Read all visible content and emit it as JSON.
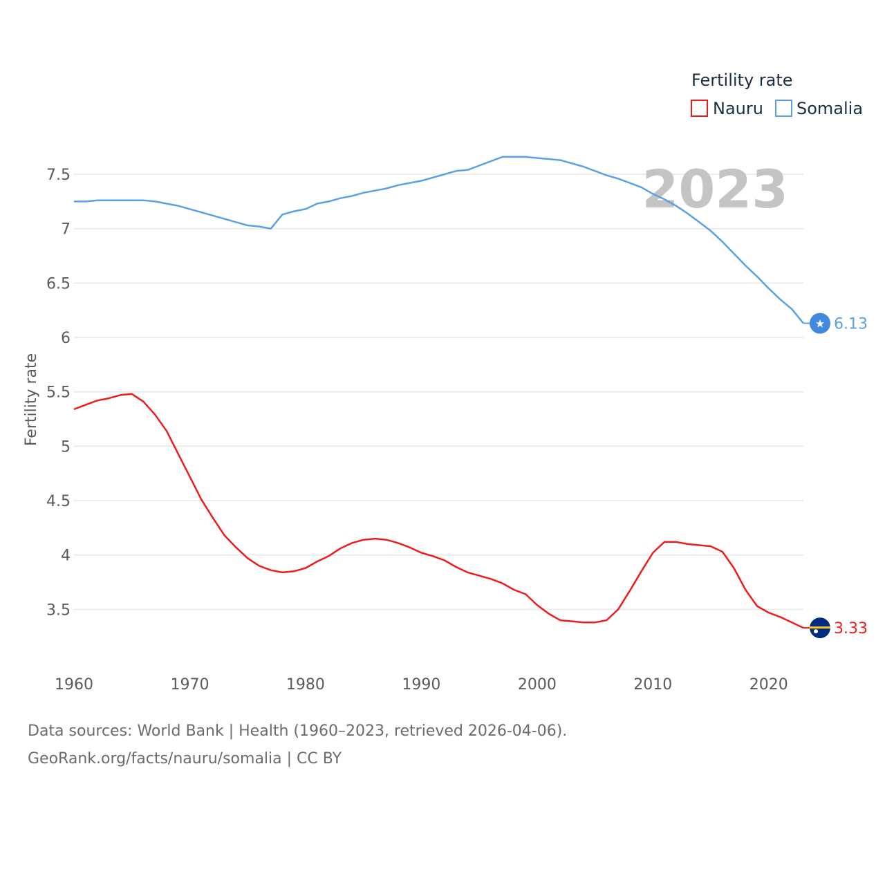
{
  "chart_data": {
    "type": "line",
    "legend_title": "Fertility rate",
    "ylabel": "Fertility rate",
    "year_label": "2023",
    "xlim": [
      1960,
      2023
    ],
    "ylim": [
      3.0,
      7.85
    ],
    "x_ticks": [
      "1960",
      "1970",
      "1980",
      "1990",
      "2000",
      "2010",
      "2020"
    ],
    "y_ticks": [
      "3.5",
      "4",
      "4.5",
      "5",
      "5.5",
      "6",
      "6.5",
      "7",
      "7.5"
    ],
    "legend_placement": "top-right",
    "series": [
      {
        "name": "Nauru",
        "color": "#ee1c1c",
        "end_label": "3.33",
        "marker_icon": "nauru-flag-icon",
        "x": [
          1960,
          1961,
          1962,
          1963,
          1964,
          1965,
          1966,
          1967,
          1968,
          1969,
          1970,
          1971,
          1972,
          1973,
          1974,
          1975,
          1976,
          1977,
          1978,
          1979,
          1980,
          1981,
          1982,
          1983,
          1984,
          1985,
          1986,
          1987,
          1988,
          1989,
          1990,
          1991,
          1992,
          1993,
          1994,
          1995,
          1996,
          1997,
          1998,
          1999,
          2000,
          2001,
          2002,
          2003,
          2004,
          2005,
          2006,
          2007,
          2008,
          2009,
          2010,
          2011,
          2012,
          2013,
          2014,
          2015,
          2016,
          2017,
          2018,
          2019,
          2020,
          2021,
          2022,
          2023
        ],
        "values": [
          5.34,
          5.38,
          5.42,
          5.44,
          5.47,
          5.48,
          5.41,
          5.29,
          5.14,
          4.93,
          4.72,
          4.51,
          4.34,
          4.18,
          4.07,
          3.97,
          3.9,
          3.86,
          3.84,
          3.85,
          3.88,
          3.94,
          3.99,
          4.06,
          4.11,
          4.14,
          4.15,
          4.14,
          4.11,
          4.07,
          4.02,
          3.99,
          3.95,
          3.89,
          3.84,
          3.81,
          3.78,
          3.74,
          3.68,
          3.64,
          3.54,
          3.46,
          3.4,
          3.39,
          3.38,
          3.38,
          3.4,
          3.5,
          3.67,
          3.85,
          4.02,
          4.12,
          4.12,
          4.1,
          4.09,
          4.08,
          4.03,
          3.88,
          3.68,
          3.53,
          3.47,
          3.43,
          3.38,
          3.33
        ]
      },
      {
        "name": "Somalia",
        "color": "#5aa1e3",
        "end_label": "6.13",
        "marker_icon": "somalia-flag-icon",
        "x": [
          1960,
          1961,
          1962,
          1963,
          1964,
          1965,
          1966,
          1967,
          1968,
          1969,
          1970,
          1971,
          1972,
          1973,
          1974,
          1975,
          1976,
          1977,
          1978,
          1979,
          1980,
          1981,
          1982,
          1983,
          1984,
          1985,
          1986,
          1987,
          1988,
          1989,
          1990,
          1991,
          1992,
          1993,
          1994,
          1995,
          1996,
          1997,
          1998,
          1999,
          2000,
          2001,
          2002,
          2003,
          2004,
          2005,
          2006,
          2007,
          2008,
          2009,
          2010,
          2011,
          2012,
          2013,
          2014,
          2015,
          2016,
          2017,
          2018,
          2019,
          2020,
          2021,
          2022,
          2023
        ],
        "values": [
          7.25,
          7.25,
          7.26,
          7.26,
          7.26,
          7.26,
          7.26,
          7.25,
          7.23,
          7.21,
          7.18,
          7.15,
          7.12,
          7.09,
          7.06,
          7.03,
          7.02,
          7.0,
          7.13,
          7.16,
          7.18,
          7.23,
          7.25,
          7.28,
          7.3,
          7.33,
          7.35,
          7.37,
          7.4,
          7.42,
          7.44,
          7.47,
          7.5,
          7.53,
          7.54,
          7.58,
          7.62,
          7.66,
          7.66,
          7.66,
          7.65,
          7.64,
          7.63,
          7.6,
          7.57,
          7.53,
          7.49,
          7.46,
          7.42,
          7.38,
          7.32,
          7.27,
          7.21,
          7.14,
          7.06,
          6.98,
          6.88,
          6.77,
          6.66,
          6.56,
          6.45,
          6.35,
          6.26,
          6.13
        ]
      }
    ]
  },
  "footer": {
    "sources": "Data sources: World Bank | Health (1960–2023, retrieved 2026-04-06).",
    "credit": "GeoRank.org/facts/nauru/somalia | CC BY"
  }
}
